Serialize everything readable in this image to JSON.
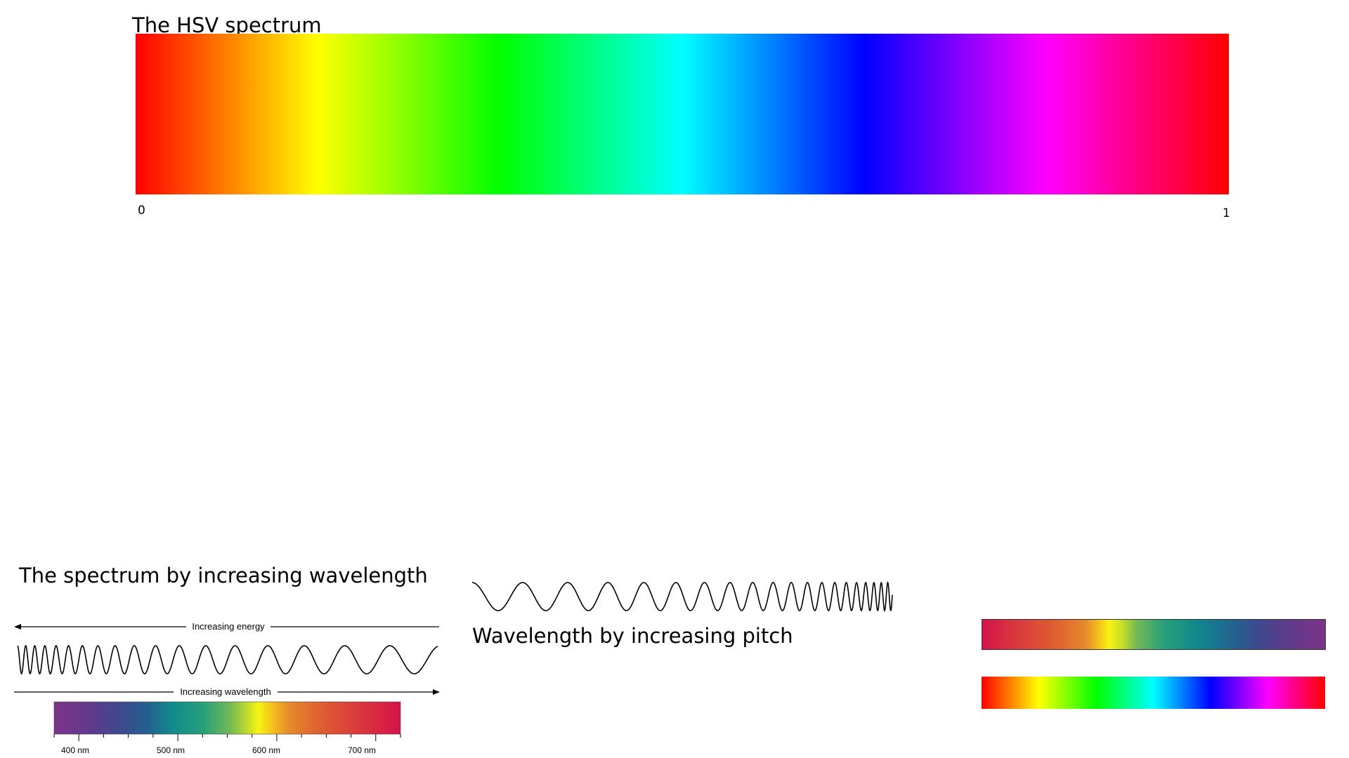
{
  "hsv_section": {
    "title": "The HSV spectrum",
    "tick_start": "0",
    "tick_end": "1"
  },
  "wavelength_section": {
    "title": "The spectrum by increasing wavelength",
    "energy_label": "Increasing energy",
    "wavelength_label": "Increasing wavelength",
    "axis_ticks": [
      "400 nm",
      "500 nm",
      "600 nm",
      "700 nm"
    ]
  },
  "pitch_section": {
    "title": "Wavelength by increasing pitch"
  },
  "colors": {
    "hsv_stops": [
      "#ff0000",
      "#ffff00",
      "#00ff00",
      "#00ffff",
      "#0000ff",
      "#ff00ff",
      "#ff0000"
    ],
    "visible_spectrum_stops": [
      "#7c3489",
      "#5b3c8c",
      "#3c4b8d",
      "#24608f",
      "#118a8c",
      "#27a07a",
      "#73b954",
      "#c5dd2a",
      "#f6f313",
      "#f3c11c",
      "#e6892b",
      "#de5a32",
      "#d8323f",
      "#d4134a"
    ]
  }
}
